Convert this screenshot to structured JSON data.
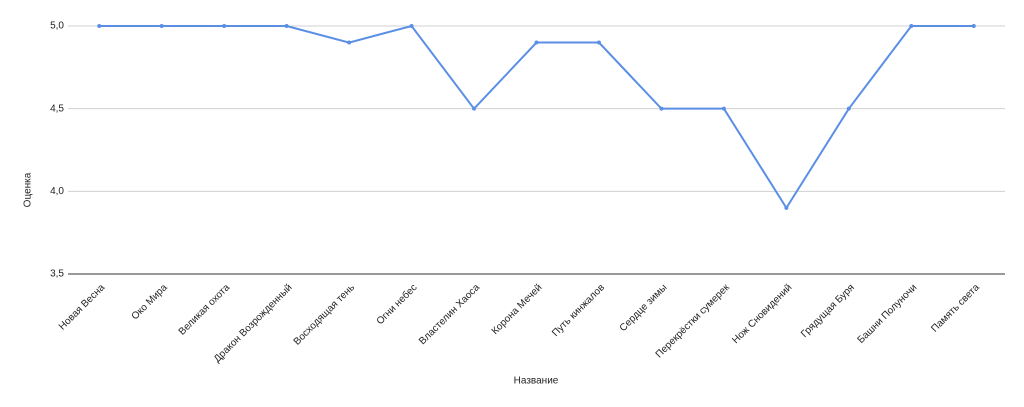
{
  "chart_data": {
    "type": "line",
    "x_label": "Название",
    "y_label": "Оценка",
    "categories": [
      "Новая Весна",
      "Око Мира",
      "Великая охота",
      "Дракон Возрожденный",
      "Восходящая тень",
      "Огни небес",
      "Властелин Хаоса",
      "Корона Мечей",
      "Путь кинжалов",
      "Сердце зимы",
      "Перекрёстки сумерек",
      "Нож Сновидений",
      "Грядущая Буря",
      "Башни Полуночи",
      "Память света"
    ],
    "values": [
      5.0,
      5.0,
      5.0,
      5.0,
      4.9,
      5.0,
      4.5,
      4.9,
      4.9,
      4.5,
      4.5,
      3.9,
      4.5,
      5.0,
      5.0
    ],
    "color": "#5b8fe6",
    "ylim": [
      3.5,
      5.0
    ],
    "yticks": [
      {
        "value": 3.5,
        "label": "3,5"
      },
      {
        "value": 4.0,
        "label": "4,0"
      },
      {
        "value": 4.5,
        "label": "4,5"
      },
      {
        "value": 5.0,
        "label": "5,0"
      }
    ],
    "grid": true
  }
}
